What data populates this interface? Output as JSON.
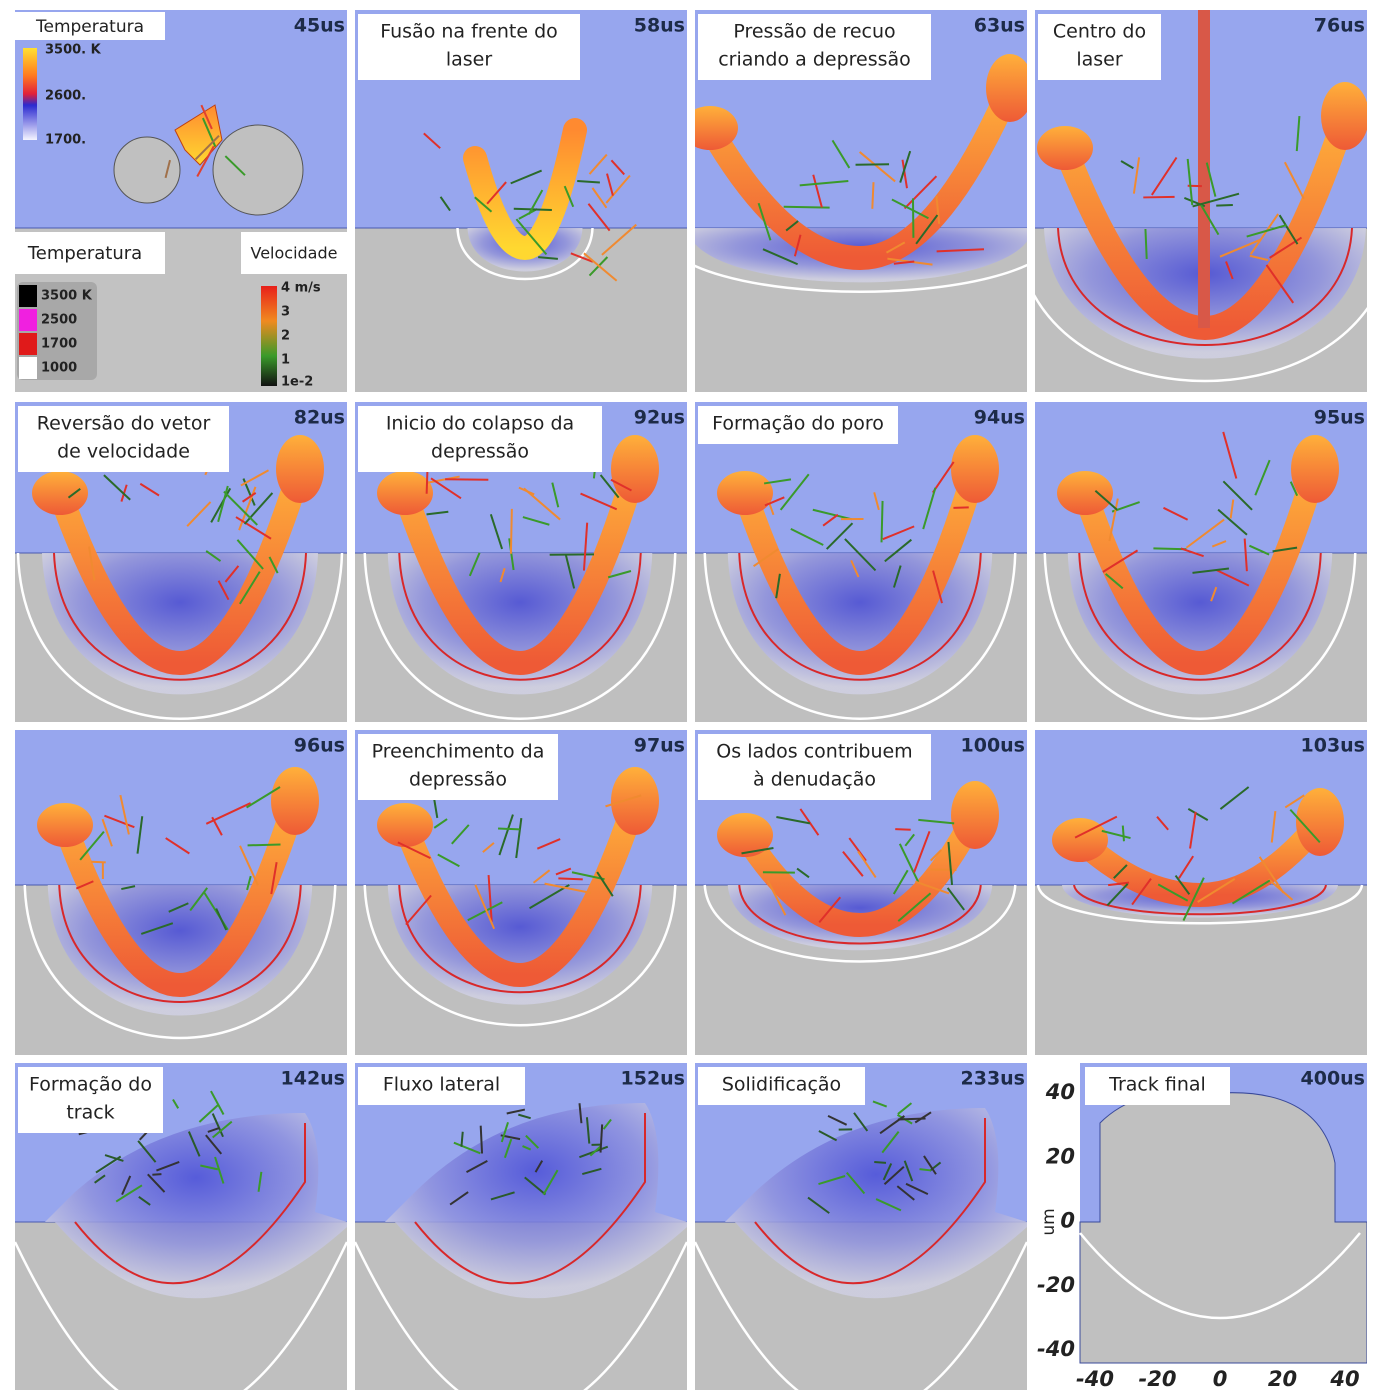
{
  "panels": [
    {
      "time": "45us"
    },
    {
      "time": "58us",
      "caption": [
        "Fusão na frente do",
        "laser"
      ]
    },
    {
      "time": "63us",
      "caption": [
        "Pressão de recuo",
        "criando a depressão"
      ]
    },
    {
      "time": "76us",
      "caption": [
        "Centro do",
        "laser"
      ]
    },
    {
      "time": "82us",
      "caption": [
        "Reversão do vetor",
        "de velocidade"
      ]
    },
    {
      "time": "92us",
      "caption": [
        "Inicio do colapso da",
        "depressão"
      ]
    },
    {
      "time": "94us",
      "caption": [
        "Formação do poro"
      ]
    },
    {
      "time": "95us"
    },
    {
      "time": "96us"
    },
    {
      "time": "97us",
      "caption": [
        "Preenchimento da",
        "depressão"
      ]
    },
    {
      "time": "100us",
      "caption": [
        "Os lados contribuem",
        "à denudação"
      ]
    },
    {
      "time": "103us"
    },
    {
      "time": "142us",
      "caption": [
        "Formação do",
        "track"
      ]
    },
    {
      "time": "152us",
      "caption": [
        "Fluxo lateral"
      ]
    },
    {
      "time": "233us",
      "caption": [
        "Solidificação"
      ]
    },
    {
      "time": "400us",
      "caption": [
        "Track final"
      ]
    }
  ],
  "inset_legend": {
    "title": "Temperatura",
    "labels": [
      "3500. K",
      "2600.",
      "1700."
    ]
  },
  "temperature_legend": {
    "title": "Temperatura",
    "labels": [
      "3500 K",
      "2500",
      "1700",
      "1000"
    ]
  },
  "velocity_legend": {
    "title": "Velocidade",
    "labels": [
      "4 m/s",
      "3",
      "2",
      "1",
      "1e-2"
    ]
  },
  "final_axes": {
    "y_label": "um",
    "y_ticks": [
      40,
      20,
      0,
      -20,
      -40
    ],
    "x_ticks": [
      -40,
      -20,
      0,
      20,
      40
    ]
  }
}
